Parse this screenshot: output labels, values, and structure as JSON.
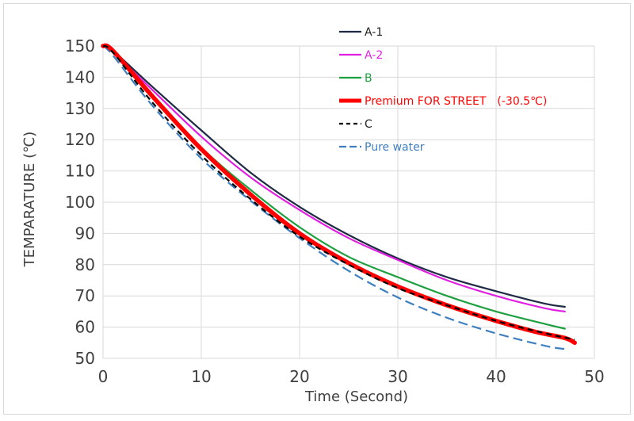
{
  "chart_data": {
    "type": "line",
    "title": "",
    "xlabel": "Time (Second)",
    "ylabel": "TEMPARATURE (℃)",
    "xlim": [
      0,
      50
    ],
    "ylim": [
      50,
      150
    ],
    "xticks": [
      0,
      10,
      20,
      30,
      40,
      50
    ],
    "yticks": [
      50,
      60,
      70,
      80,
      90,
      100,
      110,
      120,
      130,
      140,
      150
    ],
    "grid": true,
    "legend_position": "top-center",
    "series": [
      {
        "name": "A-1",
        "color": "#1f2a44",
        "dash": "solid",
        "width": "thin",
        "x": [
          0,
          1,
          5,
          10,
          15,
          20,
          25,
          30,
          35,
          40,
          45,
          47
        ],
        "y": [
          150,
          148.5,
          137,
          123,
          109.5,
          98.5,
          89.5,
          82,
          76,
          71.5,
          67.5,
          66.5
        ]
      },
      {
        "name": "A-2",
        "color": "#e020e0",
        "dash": "solid",
        "width": "thin",
        "x": [
          0,
          1,
          5,
          10,
          15,
          20,
          25,
          30,
          35,
          40,
          45,
          47
        ],
        "y": [
          150,
          148,
          136,
          121,
          108,
          97.5,
          88.5,
          81.5,
          75,
          70,
          66,
          65
        ]
      },
      {
        "name": "B",
        "color": "#1fa040",
        "dash": "solid",
        "width": "thin",
        "x": [
          0,
          1,
          5,
          10,
          15,
          20,
          25,
          30,
          35,
          40,
          45,
          47
        ],
        "y": [
          150,
          148,
          134.5,
          117.5,
          104,
          92,
          82.5,
          76,
          70,
          65,
          61,
          59.5
        ]
      },
      {
        "name": "Premium FOR STREET　(-30.5℃)",
        "color": "#ff0000",
        "dash": "solid",
        "width": "thick",
        "x": [
          0,
          1,
          5,
          10,
          15,
          20,
          25,
          30,
          35,
          40,
          44,
          47,
          48
        ],
        "y": [
          150,
          148.5,
          134,
          117,
          102.5,
          90,
          80.5,
          73,
          67,
          62,
          58.5,
          56.5,
          55
        ]
      },
      {
        "name": "C",
        "color": "#000000",
        "dash": "dashed",
        "width": "thin",
        "x": [
          0,
          1,
          5,
          10,
          15,
          20,
          25,
          30,
          35,
          40,
          45,
          48
        ],
        "y": [
          150,
          148,
          132,
          115,
          101,
          89,
          80,
          72.5,
          67,
          62,
          58,
          56
        ]
      },
      {
        "name": "Pure water",
        "color": "#3f7fc0",
        "dash": "dashed",
        "width": "thin",
        "x": [
          0,
          1,
          5,
          10,
          15,
          20,
          25,
          30,
          35,
          40,
          45,
          47
        ],
        "y": [
          150,
          147,
          131,
          114,
          100.5,
          88.5,
          78,
          69.5,
          63,
          58,
          54,
          53
        ]
      }
    ]
  }
}
